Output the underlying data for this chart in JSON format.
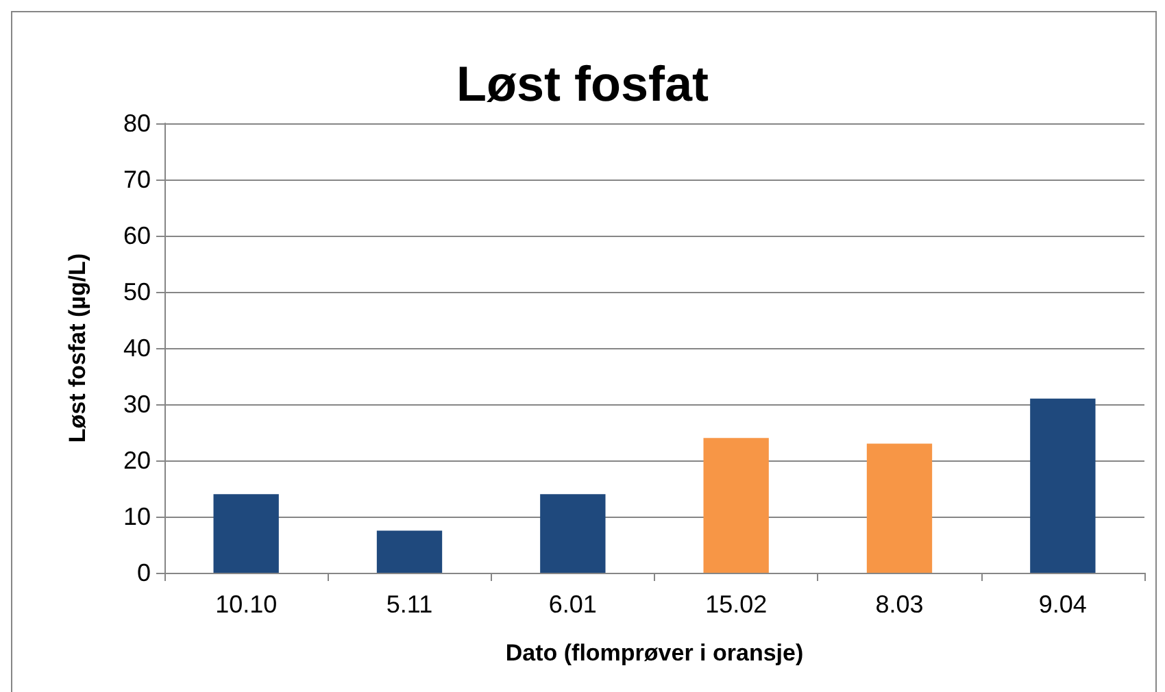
{
  "chart_data": {
    "type": "bar",
    "title": "Løst fosfat",
    "xlabel": "Dato (flomprøver i oransje)",
    "ylabel": "Løst fosfat (µg/L)",
    "categories": [
      "10.10",
      "5.11",
      "6.01",
      "15.02",
      "8.03",
      "9.04"
    ],
    "values": [
      14,
      7.5,
      14,
      24,
      23,
      31
    ],
    "colors": [
      "#1f497d",
      "#1f497d",
      "#1f497d",
      "#f79646",
      "#f79646",
      "#1f497d"
    ],
    "ylim": [
      0,
      80
    ],
    "yticks": [
      0,
      10,
      20,
      30,
      40,
      50,
      60,
      70,
      80
    ],
    "grid": "y"
  }
}
